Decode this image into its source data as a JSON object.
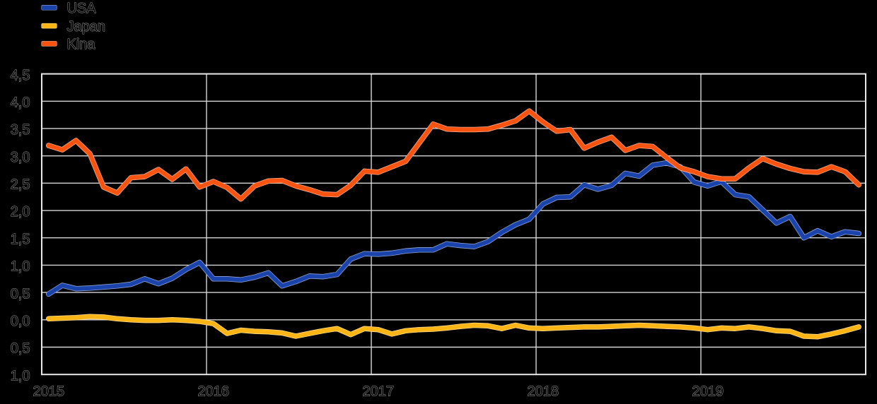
{
  "background_color": "#000000",
  "chart_data": {
    "type": "line",
    "x_unit": "month",
    "x_start_year": 2015,
    "x_end_year": 2020,
    "x_tick_labels": [
      "2015",
      "2016",
      "2017",
      "2018",
      "2019"
    ],
    "y_tick_labels": [
      "4,5",
      "4,0",
      "3,5",
      "3,0",
      "2,5",
      "2,0",
      "1,5",
      "1,0",
      "0,5",
      "0,0",
      "0,5",
      "1,0"
    ],
    "y_tick_values": [
      4.5,
      4.0,
      3.5,
      3.0,
      2.5,
      2.0,
      1.5,
      1.0,
      0.5,
      0.0,
      -0.5,
      -1.0
    ],
    "ylim": [
      -1.0,
      4.5
    ],
    "grid": true,
    "grid_color": "#d5d5d5",
    "border_color": "#eaeaea",
    "legend_position": "top-left",
    "series": [
      {
        "name": "USA",
        "color": "#1a43ab",
        "values": [
          0.47,
          0.63,
          0.57,
          0.58,
          0.6,
          0.62,
          0.65,
          0.75,
          0.66,
          0.76,
          0.92,
          1.05,
          0.75,
          0.75,
          0.73,
          0.78,
          0.86,
          0.62,
          0.7,
          0.8,
          0.79,
          0.83,
          1.11,
          1.21,
          1.2,
          1.22,
          1.26,
          1.28,
          1.28,
          1.39,
          1.36,
          1.34,
          1.43,
          1.6,
          1.74,
          1.84,
          2.12,
          2.24,
          2.25,
          2.47,
          2.39,
          2.46,
          2.68,
          2.63,
          2.83,
          2.87,
          2.8,
          2.52,
          2.45,
          2.53,
          2.29,
          2.25,
          2.01,
          1.77,
          1.89,
          1.5,
          1.63,
          1.52,
          1.61,
          1.58
        ]
      },
      {
        "name": "Japan",
        "color": "#fcb514",
        "values": [
          0.02,
          0.03,
          0.04,
          0.06,
          0.05,
          0.02,
          0.0,
          -0.01,
          -0.01,
          0.0,
          -0.01,
          -0.03,
          -0.07,
          -0.25,
          -0.19,
          -0.21,
          -0.22,
          -0.24,
          -0.3,
          -0.25,
          -0.2,
          -0.16,
          -0.27,
          -0.16,
          -0.18,
          -0.26,
          -0.2,
          -0.18,
          -0.17,
          -0.15,
          -0.12,
          -0.1,
          -0.11,
          -0.16,
          -0.1,
          -0.15,
          -0.16,
          -0.15,
          -0.14,
          -0.13,
          -0.13,
          -0.12,
          -0.11,
          -0.1,
          -0.11,
          -0.12,
          -0.13,
          -0.15,
          -0.18,
          -0.15,
          -0.16,
          -0.13,
          -0.16,
          -0.2,
          -0.21,
          -0.3,
          -0.31,
          -0.26,
          -0.2,
          -0.13
        ]
      },
      {
        "name": "Kina",
        "color": "#fa520f",
        "values": [
          3.19,
          3.11,
          3.28,
          3.04,
          2.43,
          2.32,
          2.6,
          2.62,
          2.75,
          2.57,
          2.76,
          2.43,
          2.53,
          2.42,
          2.21,
          2.45,
          2.54,
          2.55,
          2.45,
          2.38,
          2.3,
          2.29,
          2.46,
          2.72,
          2.7,
          2.8,
          2.9,
          3.24,
          3.58,
          3.49,
          3.48,
          3.48,
          3.49,
          3.56,
          3.64,
          3.82,
          3.62,
          3.45,
          3.48,
          3.14,
          3.25,
          3.34,
          3.1,
          3.19,
          3.17,
          2.97,
          2.78,
          2.71,
          2.62,
          2.58,
          2.58,
          2.78,
          2.95,
          2.85,
          2.77,
          2.71,
          2.7,
          2.8,
          2.71,
          2.47
        ]
      }
    ]
  }
}
